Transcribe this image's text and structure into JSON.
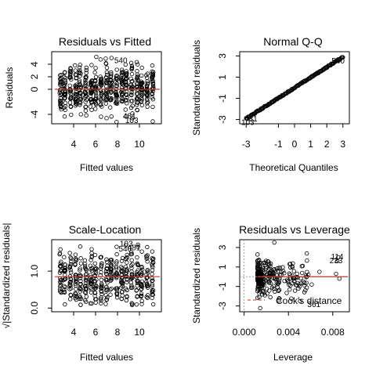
{
  "chart_data": [
    {
      "type": "scatter",
      "title": "Residuals vs Fitted",
      "xlabel": "Fitted values",
      "ylabel": "Residuals",
      "xlim": [
        2,
        12
      ],
      "ylim": [
        -5.5,
        6
      ],
      "xticks": [
        4,
        6,
        8,
        10
      ],
      "yticks": [
        -4,
        0,
        2,
        4
      ],
      "reference_line": {
        "y": 0,
        "color": "#c0392b"
      },
      "point_columns": [
        2.8,
        3.2,
        3.7,
        4.2,
        4.6,
        5.1,
        5.6,
        6.0,
        6.5,
        7.0,
        7.4,
        7.9,
        8.4,
        8.8,
        9.3,
        9.8,
        10.2,
        10.7,
        11.2
      ],
      "annotations": [
        {
          "label": "540",
          "x": 8.3,
          "y": 4.7
        },
        {
          "label": "481",
          "x": 9.1,
          "y": -4.2
        },
        {
          "label": "103",
          "x": 9.3,
          "y": -4.9
        }
      ]
    },
    {
      "type": "scatter",
      "title": "Normal Q-Q",
      "xlabel": "Theoretical Quantiles",
      "ylabel": "Standardized residuals",
      "xlim": [
        -3.4,
        3.4
      ],
      "ylim": [
        -3.4,
        3.4
      ],
      "xticks": [
        -3,
        -1,
        0,
        1,
        2,
        3
      ],
      "yticks": [
        -3,
        -1,
        1,
        3
      ],
      "annotations": [
        {
          "label": "540",
          "x": 2.7,
          "y": 2.6
        },
        {
          "label": "481",
          "x": -2.7,
          "y": -2.9
        },
        {
          "label": "103",
          "x": -2.9,
          "y": -3.2
        }
      ]
    },
    {
      "type": "scatter",
      "title": "Scale-Location",
      "xlabel": "Fitted values",
      "ylabel": "√|Standardized residuals|",
      "xlim": [
        2,
        12
      ],
      "ylim": [
        -0.1,
        1.85
      ],
      "xticks": [
        4,
        6,
        8,
        10
      ],
      "yticks": [
        0.0,
        1.0
      ],
      "ytick_labels": [
        "0.0",
        "1.0"
      ],
      "reference_line": {
        "y": 0.85,
        "color": "#c0392b"
      },
      "point_columns": [
        2.8,
        3.2,
        3.7,
        4.2,
        4.6,
        5.1,
        5.6,
        6.0,
        6.5,
        7.0,
        7.4,
        7.9,
        8.4,
        8.8,
        9.3,
        9.8,
        10.2,
        10.7,
        11.2
      ],
      "annotations": [
        {
          "label": "103",
          "x": 8.8,
          "y": 1.75
        },
        {
          "label": "540",
          "x": 8.7,
          "y": 1.62
        },
        {
          "label": "481",
          "x": 9.5,
          "y": 1.65
        }
      ]
    },
    {
      "type": "scatter",
      "title": "Residuals vs Leverage",
      "xlabel": "Leverage",
      "ylabel": "Standardized residuals",
      "xlim": [
        -0.0004,
        0.0095
      ],
      "ylim": [
        -3.6,
        3.8
      ],
      "xticks": [
        0.0,
        0.004,
        0.008
      ],
      "xtick_labels": [
        "0.000",
        "0.004",
        "0.008"
      ],
      "yticks": [
        -3,
        -1,
        1,
        3
      ],
      "reference_line": {
        "y": 0,
        "color": "#c0392b"
      },
      "legend": {
        "label": "Cook's distance",
        "position": "bottom-right",
        "line_color": "#c0392b"
      },
      "annotations": [
        {
          "label": "114",
          "x": 0.0084,
          "y": 2.1
        },
        {
          "label": "233",
          "x": 0.0083,
          "y": 1.7
        },
        {
          "label": "361",
          "x": 0.0063,
          "y": -2.8
        }
      ]
    }
  ]
}
